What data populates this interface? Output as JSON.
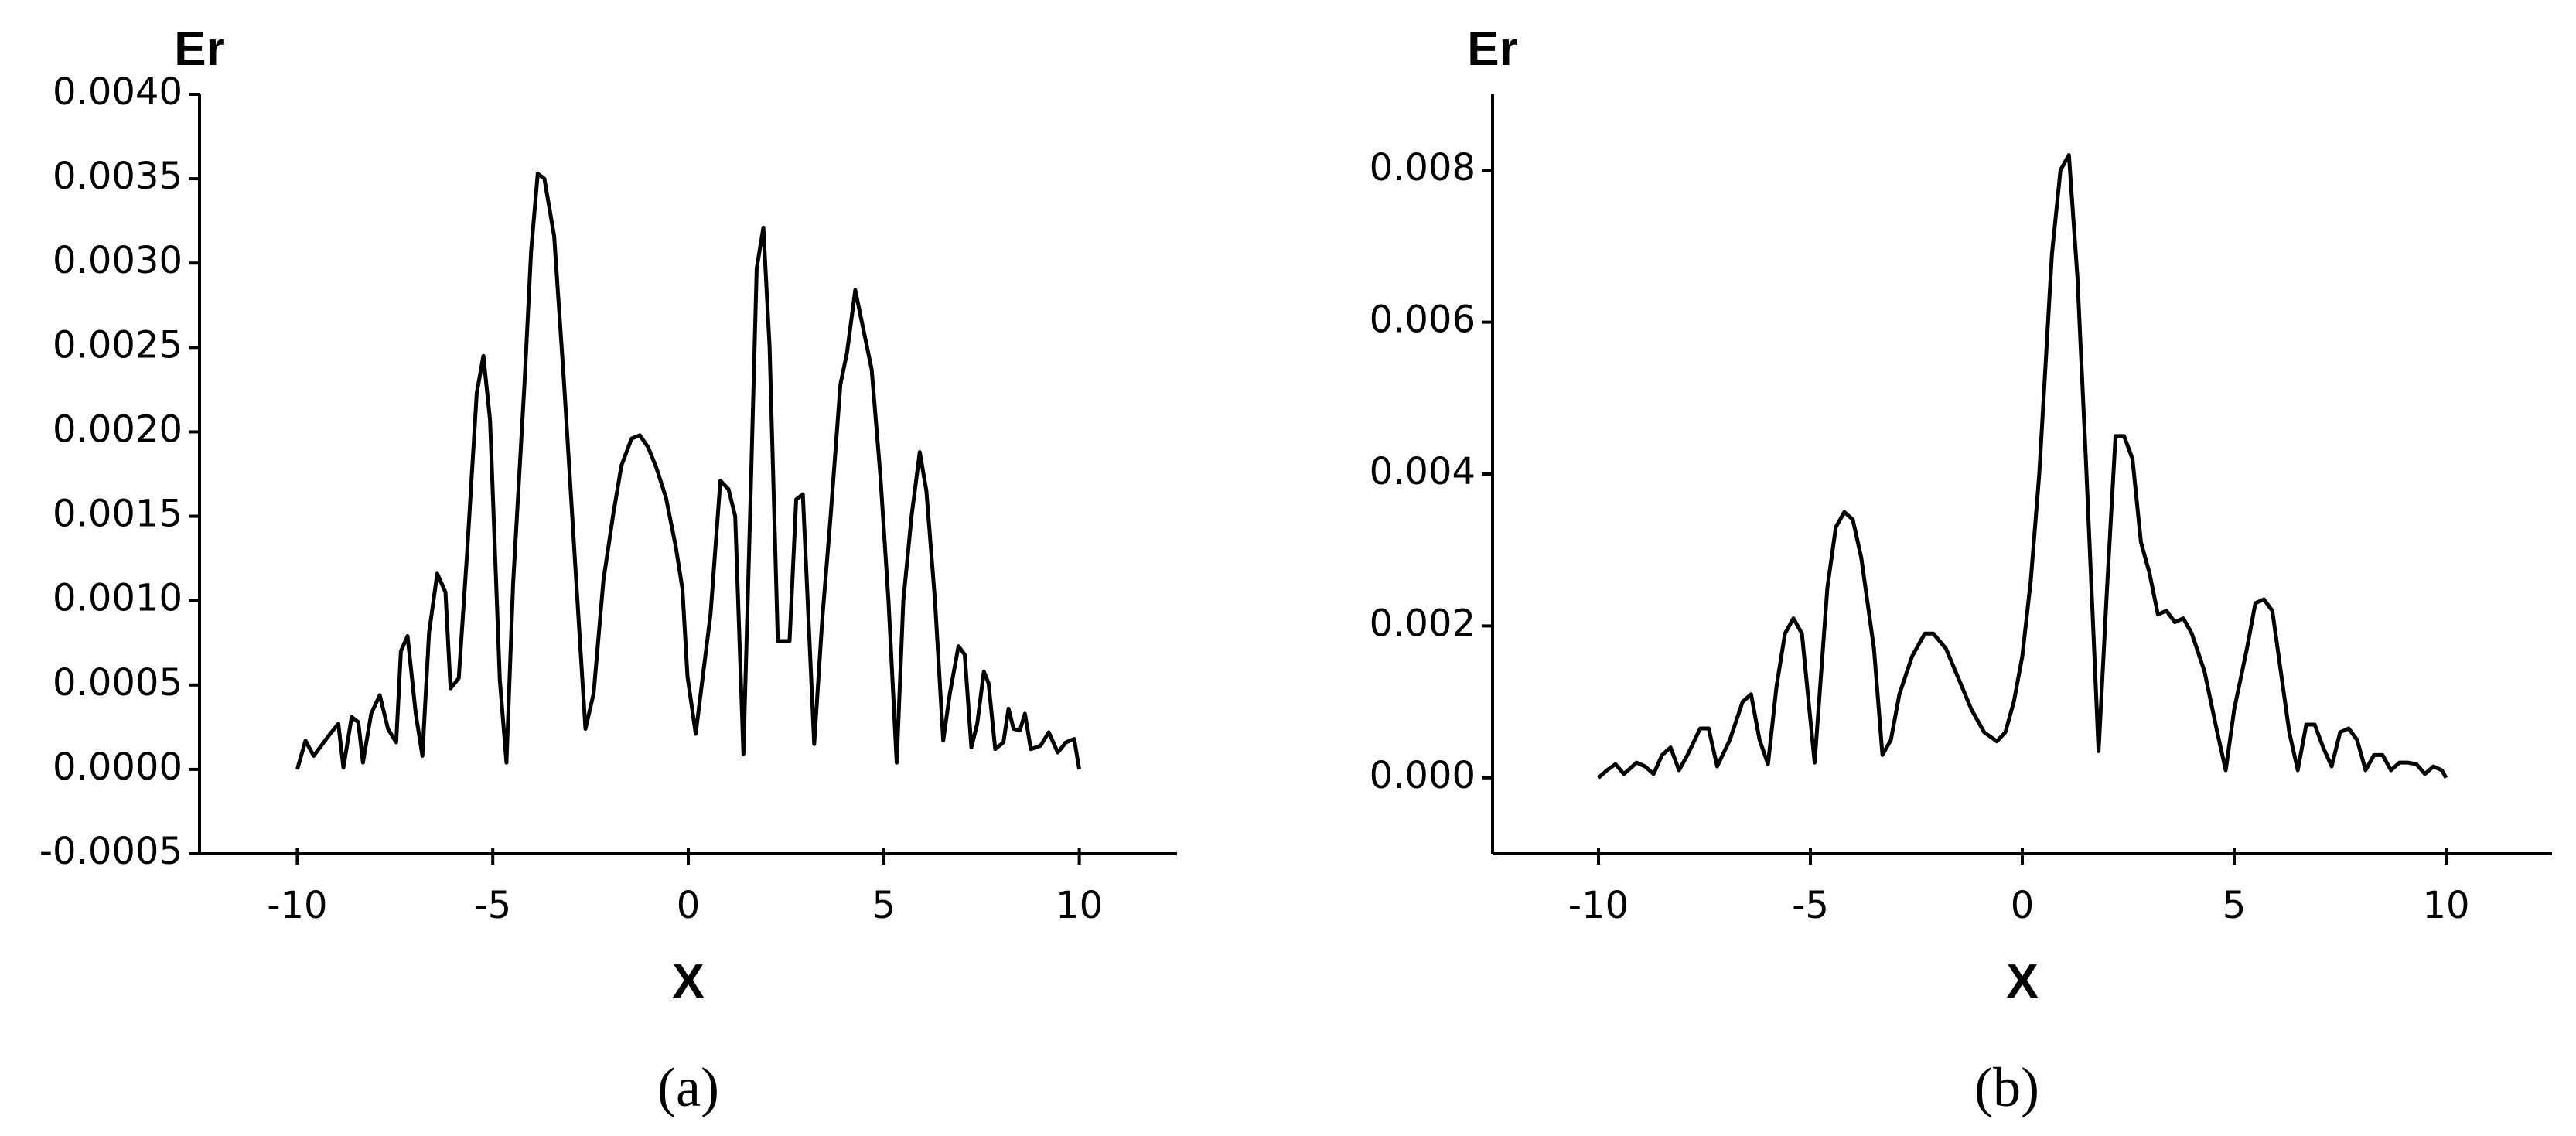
{
  "chart_data": [
    {
      "type": "line",
      "label": "(a)",
      "y_label": "Er",
      "x_label": "X",
      "color": "#000000",
      "xlim": [
        -12.5,
        12.5
      ],
      "xticks": [
        -10,
        -5,
        0,
        5,
        10
      ],
      "ylim": [
        -0.0005,
        0.004
      ],
      "yticks": [
        {
          "value": -0.0005,
          "label": "-0.0005"
        },
        {
          "value": 0,
          "label": "0.0000"
        },
        {
          "value": 0.0005,
          "label": "0.0005"
        },
        {
          "value": 0.001,
          "label": "0.0010"
        },
        {
          "value": 0.0015,
          "label": "0.0015"
        },
        {
          "value": 0.002,
          "label": "0.0020"
        },
        {
          "value": 0.0025,
          "label": "0.0025"
        },
        {
          "value": 0.003,
          "label": "0.0030"
        },
        {
          "value": 0.0035,
          "label": "0.0035"
        },
        {
          "value": 0.004,
          "label": "0.0040"
        }
      ],
      "x": [
        -10,
        -9.79,
        -9.58,
        -9.16,
        -8.95,
        -8.82,
        -8.61,
        -8.44,
        -8.32,
        -8.11,
        -7.89,
        -7.68,
        -7.47,
        -7.35,
        -7.18,
        -6.97,
        -6.8,
        -6.63,
        -6.42,
        -6.21,
        -6.08,
        -5.87,
        -5.66,
        -5.41,
        -5.24,
        -5.07,
        -4.82,
        -4.65,
        -4.48,
        -4.19,
        -4.02,
        -3.85,
        -3.68,
        -3.43,
        -3.18,
        -2.84,
        -2.63,
        -2.42,
        -2.17,
        -1.92,
        -1.71,
        -1.45,
        -1.24,
        -1.03,
        -0.82,
        -0.57,
        -0.32,
        -0.15,
        -0.02,
        0.19,
        0.36,
        0.57,
        0.82,
        1.03,
        1.2,
        1.41,
        1.58,
        1.75,
        1.92,
        2.08,
        2.29,
        2.59,
        2.76,
        2.93,
        3.22,
        3.43,
        3.64,
        3.89,
        4.06,
        4.27,
        4.44,
        4.69,
        4.91,
        5.12,
        5.33,
        5.5,
        5.71,
        5.92,
        6.09,
        6.31,
        6.52,
        6.69,
        6.91,
        7.07,
        7.24,
        7.39,
        7.56,
        7.68,
        7.85,
        8.06,
        8.19,
        8.32,
        8.48,
        8.61,
        8.76,
        9.01,
        9.22,
        9.45,
        9.66,
        9.87,
        10
      ],
      "values": [
        0,
        0.00017,
        8e-05,
        0.00021,
        0.00027,
        1e-05,
        0.00031,
        0.00028,
        4e-05,
        0.00033,
        0.00044,
        0.00024,
        0.00016,
        0.0007,
        0.00079,
        0.00033,
        8e-05,
        0.00081,
        0.00116,
        0.00105,
        0.00048,
        0.00054,
        0.00127,
        0.00223,
        0.00245,
        0.00207,
        0.00053,
        4e-05,
        0.0011,
        0.00228,
        0.00307,
        0.00353,
        0.0035,
        0.00316,
        0.0023,
        0.00102,
        0.00024,
        0.00045,
        0.00112,
        0.00151,
        0.0018,
        0.00196,
        0.00198,
        0.00191,
        0.00179,
        0.00161,
        0.00132,
        0.00107,
        0.00055,
        0.00021,
        0.00053,
        0.00092,
        0.00171,
        0.00166,
        0.0015,
        9e-05,
        0.0015,
        0.00297,
        0.00321,
        0.0025,
        0.00076,
        0.00076,
        0.0016,
        0.00163,
        0.00015,
        0.0009,
        0.0015,
        0.00228,
        0.00247,
        0.00284,
        0.00265,
        0.00237,
        0.00175,
        0.001,
        4e-05,
        0.001,
        0.0015,
        0.00188,
        0.00165,
        0.001,
        0.00017,
        0.00045,
        0.00073,
        0.00068,
        0.00013,
        0.00027,
        0.00058,
        0.00051,
        0.00012,
        0.00016,
        0.00036,
        0.00024,
        0.00023,
        0.00033,
        0.00012,
        0.00014,
        0.00022,
        0.0001,
        0.00016,
        0.00018,
        0
      ]
    },
    {
      "type": "line",
      "label": "(b)",
      "y_label": "Er",
      "x_label": "X",
      "color": "#000000",
      "xlim": [
        -12.5,
        12.5
      ],
      "xticks": [
        -10,
        -5,
        0,
        5,
        10
      ],
      "ylim": [
        -0.001,
        0.009
      ],
      "yticks": [
        {
          "value": 0,
          "label": "0.000"
        },
        {
          "value": 0.002,
          "label": "0.002"
        },
        {
          "value": 0.004,
          "label": "0.004"
        },
        {
          "value": 0.006,
          "label": "0.006"
        },
        {
          "value": 0.008,
          "label": "0.008"
        }
      ],
      "x": [
        -10,
        -9.8,
        -9.6,
        -9.4,
        -9.1,
        -8.9,
        -8.7,
        -8.5,
        -8.3,
        -8.1,
        -7.9,
        -7.6,
        -7.4,
        -7.2,
        -6.9,
        -6.6,
        -6.4,
        -6.2,
        -6.0,
        -5.8,
        -5.6,
        -5.4,
        -5.2,
        -4.9,
        -4.6,
        -4.4,
        -4.2,
        -4.0,
        -3.8,
        -3.5,
        -3.3,
        -3.1,
        -2.9,
        -2.6,
        -2.3,
        -2.1,
        -1.8,
        -1.5,
        -1.2,
        -0.9,
        -0.6,
        -0.4,
        -0.2,
        0,
        0.2,
        0.4,
        0.7,
        0.9,
        1.1,
        1.3,
        1.5,
        1.8,
        2.0,
        2.2,
        2.4,
        2.6,
        2.8,
        3.0,
        3.2,
        3.4,
        3.6,
        3.8,
        4.0,
        4.3,
        4.6,
        4.8,
        5.0,
        5.3,
        5.5,
        5.7,
        5.9,
        6.1,
        6.3,
        6.5,
        6.7,
        6.9,
        7.1,
        7.3,
        7.5,
        7.7,
        7.9,
        8.1,
        8.3,
        8.5,
        8.7,
        8.9,
        9.1,
        9.3,
        9.5,
        9.7,
        9.9,
        10
      ],
      "values": [
        0,
        0.0001,
        0.00018,
        5e-05,
        0.0002,
        0.00015,
        5e-05,
        0.0003,
        0.0004,
        0.0001,
        0.0003,
        0.00065,
        0.00065,
        0.00015,
        0.0005,
        0.001,
        0.0011,
        0.0005,
        0.00018,
        0.0012,
        0.0019,
        0.0021,
        0.0019,
        0.0002,
        0.0025,
        0.0033,
        0.0035,
        0.0034,
        0.0029,
        0.0017,
        0.0003,
        0.0005,
        0.0011,
        0.0016,
        0.0019,
        0.0019,
        0.0017,
        0.0013,
        0.0009,
        0.0006,
        0.00048,
        0.0006,
        0.001,
        0.0016,
        0.0026,
        0.004,
        0.0069,
        0.008,
        0.0082,
        0.0066,
        0.0042,
        0.00035,
        0.0025,
        0.0045,
        0.0045,
        0.0042,
        0.0031,
        0.0027,
        0.00215,
        0.0022,
        0.00205,
        0.0021,
        0.0019,
        0.0014,
        0.0006,
        0.0001,
        0.0009,
        0.0017,
        0.0023,
        0.00235,
        0.0022,
        0.0014,
        0.0006,
        0.0001,
        0.0007,
        0.0007,
        0.0004,
        0.00015,
        0.0006,
        0.00065,
        0.0005,
        0.0001,
        0.0003,
        0.0003,
        0.0001,
        0.0002,
        0.0002,
        0.00018,
        5e-05,
        0.00015,
        0.0001,
        0
      ]
    }
  ]
}
